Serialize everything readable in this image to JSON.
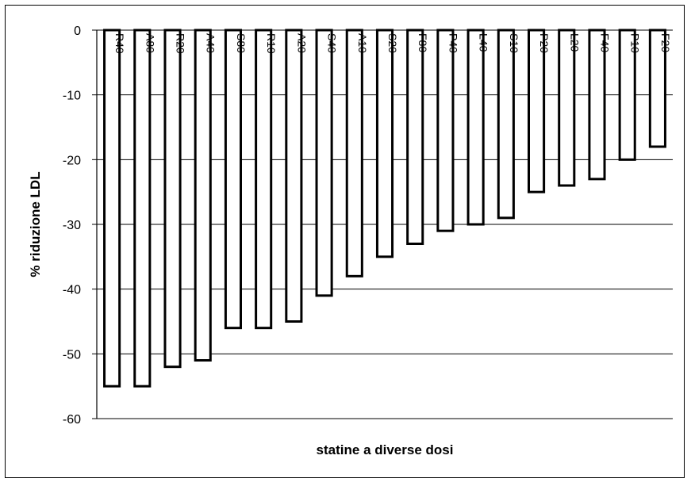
{
  "chart_data": {
    "type": "bar",
    "title": "",
    "xlabel": "statine a diverse dosi",
    "ylabel": "% riduzione LDL",
    "ylim": [
      -60,
      0
    ],
    "yticks": [
      0,
      -10,
      -20,
      -30,
      -40,
      -50,
      -60
    ],
    "grid": true,
    "categories": [
      "R40",
      "A80",
      "R20",
      "A40",
      "S80",
      "R10",
      "A20",
      "S40",
      "A10",
      "S20",
      "F80",
      "P40",
      "L40",
      "S10",
      "P20",
      "L20",
      "F40",
      "P10",
      "F20"
    ],
    "values": [
      -55,
      -55,
      -52,
      -51,
      -46,
      -46,
      -45,
      -41,
      -38,
      -35,
      -33,
      -31,
      -30,
      -29,
      -25,
      -24,
      -23,
      -20,
      -18
    ],
    "bar_fill": "#ffffff",
    "bar_stroke": "#000000"
  }
}
